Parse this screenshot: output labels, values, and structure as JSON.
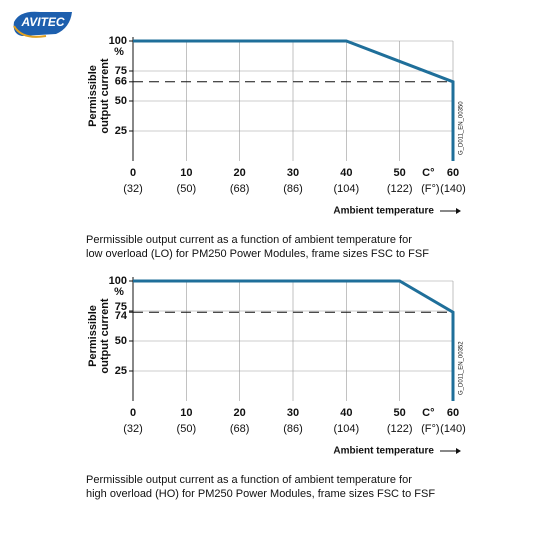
{
  "logo": "AVITEC",
  "chart_data": [
    {
      "type": "line",
      "y_label": [
        "Permissible",
        "output current"
      ],
      "y_unit": "%",
      "x": [
        0,
        40,
        60,
        60
      ],
      "values": [
        100,
        100,
        66,
        0
      ],
      "color": "#1f6f9a",
      "reference_line": 66,
      "xlim": [
        0,
        60
      ],
      "ylim": [
        0,
        100
      ],
      "xticks": [
        0,
        10,
        20,
        30,
        40,
        50,
        60
      ],
      "xticks_secondary": [
        "(32)",
        "(50)",
        "(68)",
        "(86)",
        "(104)",
        "(122)",
        "(140)"
      ],
      "x_unit": "C°",
      "x_unit_secondary": "(F°)",
      "yticks": [
        25,
        50,
        66,
        75,
        100
      ],
      "x_label": "Ambient temperature",
      "code": "G_D011_EN_00350",
      "caption": [
        "Permissible output current as a function of ambient temperature for",
        "low overload (LO) for PM250 Power Modules, frame sizes FSC to FSF"
      ],
      "grid": true
    },
    {
      "type": "line",
      "y_label": [
        "Permissible",
        "output current"
      ],
      "y_unit": "%",
      "x": [
        0,
        50,
        60,
        60
      ],
      "values": [
        100,
        100,
        74,
        0
      ],
      "color": "#1f6f9a",
      "reference_line": 74,
      "xlim": [
        0,
        60
      ],
      "ylim": [
        0,
        100
      ],
      "xticks": [
        0,
        10,
        20,
        30,
        40,
        50,
        60
      ],
      "xticks_secondary": [
        "(32)",
        "(50)",
        "(68)",
        "(86)",
        "(104)",
        "(122)",
        "(140)"
      ],
      "x_unit": "C°",
      "x_unit_secondary": "(F°)",
      "yticks": [
        25,
        50,
        74,
        75,
        100
      ],
      "x_label": "Ambient temperature",
      "code": "G_D011_EN_00352",
      "caption": [
        "Permissible output current as a function of ambient temperature for",
        "high overload (HO) for PM250 Power Modules, frame sizes FSC to FSF"
      ],
      "grid": true
    }
  ]
}
